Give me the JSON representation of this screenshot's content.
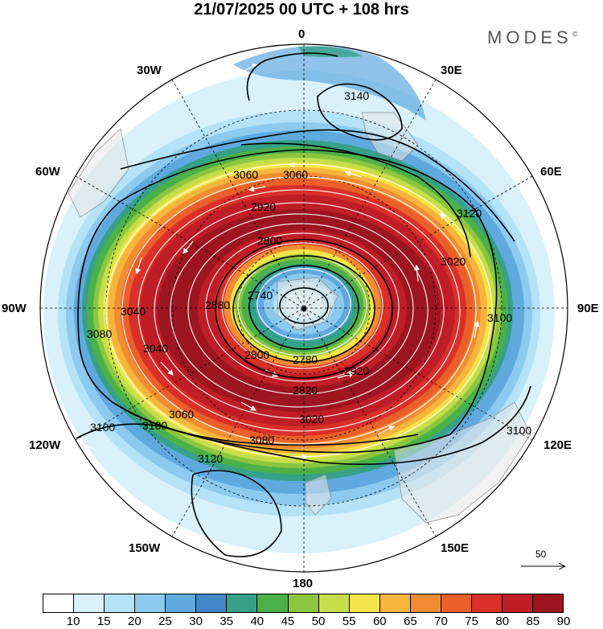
{
  "title": "21/07/2025  00 UTC  + 108 hrs",
  "brand": "MODES",
  "brand_mark": "©",
  "longitude_labels": {
    "n": "0",
    "ne": "30E",
    "nne": "60E",
    "e": "90E",
    "se": "120E",
    "sse": "150E",
    "s": "180",
    "ssw": "150W",
    "sw": "120W",
    "w": "90W",
    "nnw": "60W",
    "nw": "30W"
  },
  "contours": [
    {
      "value": "3140",
      "label": "3140"
    },
    {
      "value": "3120",
      "label": "3120"
    },
    {
      "value": "3100",
      "label": "3100"
    },
    {
      "value": "3080",
      "label": "3080"
    },
    {
      "value": "3060",
      "label": "3060"
    },
    {
      "value": "3040",
      "label": "3040"
    },
    {
      "value": "3020",
      "label": "3020"
    },
    {
      "value": "2920",
      "label": "2920"
    },
    {
      "value": "2880",
      "label": "2880"
    },
    {
      "value": "2820",
      "label": "2820"
    },
    {
      "value": "2800",
      "label": "2800"
    },
    {
      "value": "2780",
      "label": "2780"
    },
    {
      "value": "2740",
      "label": "2740"
    }
  ],
  "reference_vector": "50",
  "colorbar": {
    "colors": [
      "#ffffff",
      "#d8f1fb",
      "#b4e2f6",
      "#8ccaef",
      "#5fa9df",
      "#3f87c6",
      "#36a088",
      "#4cb04a",
      "#8cc63f",
      "#c6de4a",
      "#f5e34a",
      "#f6b53d",
      "#f18c33",
      "#eb5f2b",
      "#d9302a",
      "#bf1d27",
      "#9c1520"
    ],
    "tick_labels": [
      "10",
      "15",
      "20",
      "25",
      "30",
      "35",
      "40",
      "45",
      "50",
      "55",
      "60",
      "65",
      "70",
      "75",
      "80",
      "85",
      "90"
    ]
  }
}
